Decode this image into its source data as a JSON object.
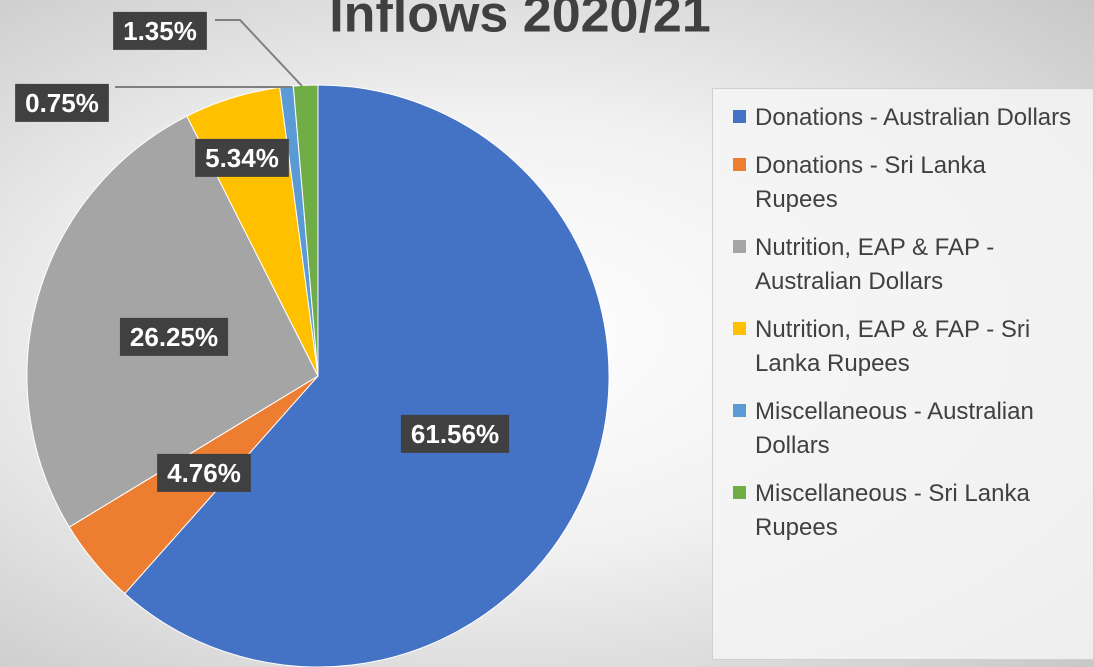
{
  "chart_data": {
    "type": "pie",
    "title": "Inflows 2020/21",
    "categories": [
      "Donations - Australian Dollars",
      "Donations - Sri Lanka Rupees",
      "Nutrition, EAP & FAP - Australian Dollars",
      "Nutrition, EAP & FAP - Sri Lanka Rupees",
      "Miscellaneous - Australian Dollars",
      "Miscellaneous - Sri Lanka Rupees"
    ],
    "values": [
      61.56,
      4.76,
      26.25,
      5.34,
      0.75,
      1.35
    ],
    "value_labels": [
      "61.56%",
      "4.76%",
      "26.25%",
      "5.34%",
      "0.75%",
      "1.35%"
    ],
    "colors": [
      "#4472c4",
      "#ed7d31",
      "#a5a5a5",
      "#ffc000",
      "#5b9bd5",
      "#70ad47"
    ],
    "legend": "right"
  }
}
